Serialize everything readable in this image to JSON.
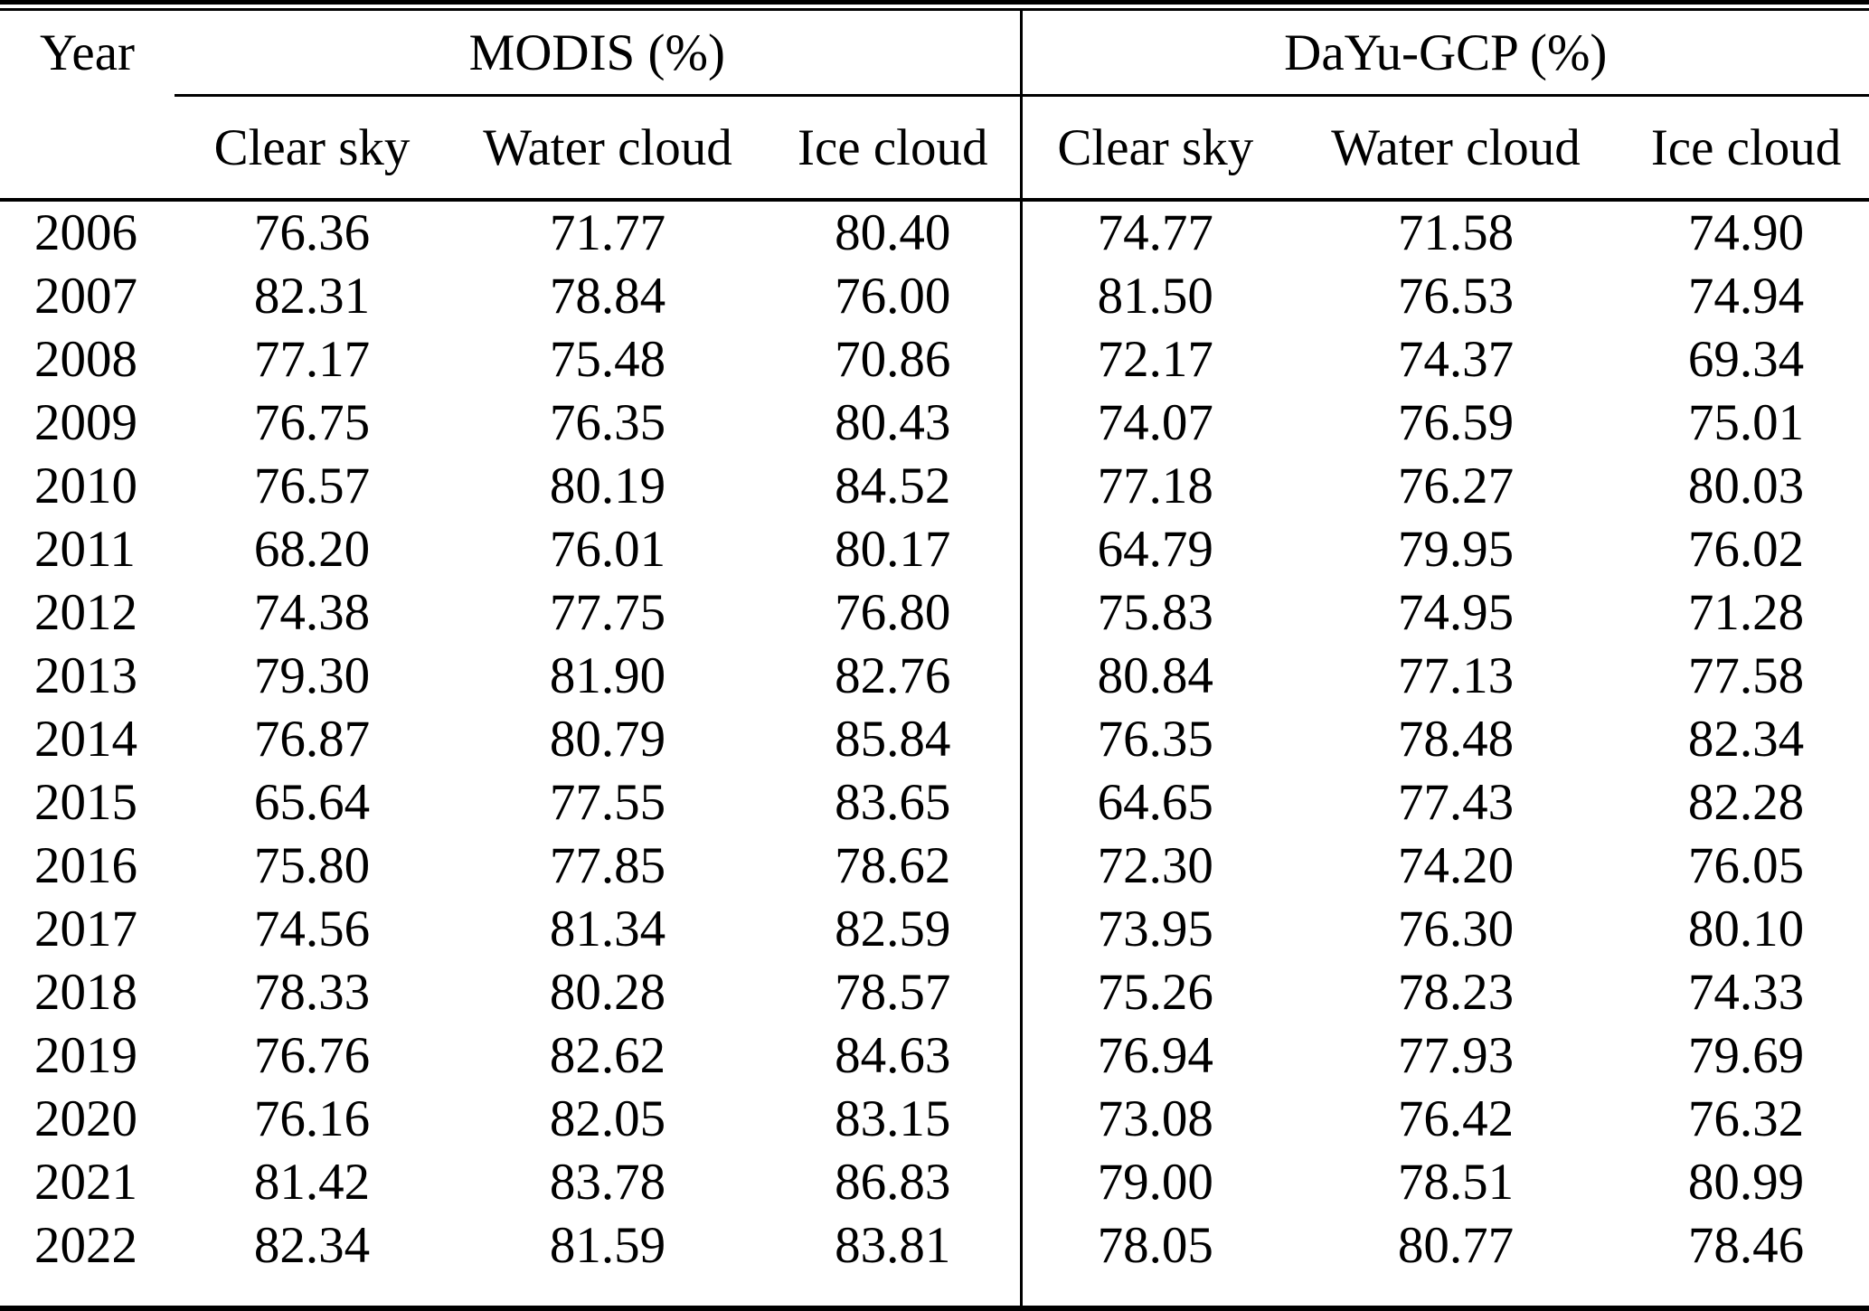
{
  "page": {
    "background": "#ffffff",
    "text_color": "#000000",
    "rule_color": "#000000"
  },
  "chart_data": {
    "type": "table",
    "year_header": "Year",
    "unit": "%",
    "groups": [
      {
        "label": "MODIS (%)",
        "sub_headers": [
          "Clear sky",
          "Water cloud",
          "Ice cloud"
        ]
      },
      {
        "label": "DaYu-GCP (%)",
        "sub_headers": [
          "Clear sky",
          "Water cloud",
          "Ice cloud"
        ]
      }
    ],
    "rows": [
      {
        "year": "2006",
        "modis": [
          "76.36",
          "71.77",
          "80.40"
        ],
        "dayu_gcp": [
          "74.77",
          "71.58",
          "74.90"
        ]
      },
      {
        "year": "2007",
        "modis": [
          "82.31",
          "78.84",
          "76.00"
        ],
        "dayu_gcp": [
          "81.50",
          "76.53",
          "74.94"
        ]
      },
      {
        "year": "2008",
        "modis": [
          "77.17",
          "75.48",
          "70.86"
        ],
        "dayu_gcp": [
          "72.17",
          "74.37",
          "69.34"
        ]
      },
      {
        "year": "2009",
        "modis": [
          "76.75",
          "76.35",
          "80.43"
        ],
        "dayu_gcp": [
          "74.07",
          "76.59",
          "75.01"
        ]
      },
      {
        "year": "2010",
        "modis": [
          "76.57",
          "80.19",
          "84.52"
        ],
        "dayu_gcp": [
          "77.18",
          "76.27",
          "80.03"
        ]
      },
      {
        "year": "2011",
        "modis": [
          "68.20",
          "76.01",
          "80.17"
        ],
        "dayu_gcp": [
          "64.79",
          "79.95",
          "76.02"
        ]
      },
      {
        "year": "2012",
        "modis": [
          "74.38",
          "77.75",
          "76.80"
        ],
        "dayu_gcp": [
          "75.83",
          "74.95",
          "71.28"
        ]
      },
      {
        "year": "2013",
        "modis": [
          "79.30",
          "81.90",
          "82.76"
        ],
        "dayu_gcp": [
          "80.84",
          "77.13",
          "77.58"
        ]
      },
      {
        "year": "2014",
        "modis": [
          "76.87",
          "80.79",
          "85.84"
        ],
        "dayu_gcp": [
          "76.35",
          "78.48",
          "82.34"
        ]
      },
      {
        "year": "2015",
        "modis": [
          "65.64",
          "77.55",
          "83.65"
        ],
        "dayu_gcp": [
          "64.65",
          "77.43",
          "82.28"
        ]
      },
      {
        "year": "2016",
        "modis": [
          "75.80",
          "77.85",
          "78.62"
        ],
        "dayu_gcp": [
          "72.30",
          "74.20",
          "76.05"
        ]
      },
      {
        "year": "2017",
        "modis": [
          "74.56",
          "81.34",
          "82.59"
        ],
        "dayu_gcp": [
          "73.95",
          "76.30",
          "80.10"
        ]
      },
      {
        "year": "2018",
        "modis": [
          "78.33",
          "80.28",
          "78.57"
        ],
        "dayu_gcp": [
          "75.26",
          "78.23",
          "74.33"
        ]
      },
      {
        "year": "2019",
        "modis": [
          "76.76",
          "82.62",
          "84.63"
        ],
        "dayu_gcp": [
          "76.94",
          "77.93",
          "79.69"
        ]
      },
      {
        "year": "2020",
        "modis": [
          "76.16",
          "82.05",
          "83.15"
        ],
        "dayu_gcp": [
          "73.08",
          "76.42",
          "76.32"
        ]
      },
      {
        "year": "2021",
        "modis": [
          "81.42",
          "83.78",
          "86.83"
        ],
        "dayu_gcp": [
          "79.00",
          "78.51",
          "80.99"
        ]
      },
      {
        "year": "2022",
        "modis": [
          "82.34",
          "81.59",
          "83.81"
        ],
        "dayu_gcp": [
          "78.05",
          "80.77",
          "78.46"
        ]
      }
    ]
  }
}
